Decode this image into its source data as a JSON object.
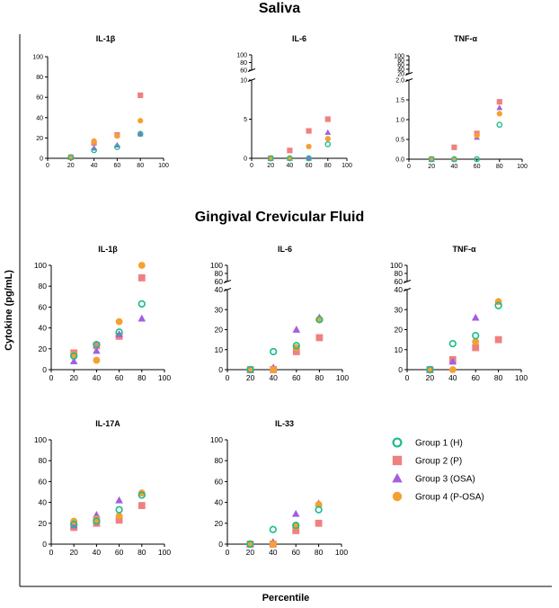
{
  "figure": {
    "sections": [
      "Saliva",
      "Gingival Crevicular Fluid"
    ],
    "ylabel": "Cytokine (pg/mL)",
    "xlabel": "Percentile"
  },
  "legend": [
    {
      "name": "Group 1 (H)",
      "marker": "open-circle",
      "color": "#1ABC8C"
    },
    {
      "name": "Group 2 (P)",
      "marker": "square",
      "color": "#F08080"
    },
    {
      "name": "Group 3 (OSA)",
      "marker": "triangle",
      "color": "#A45EE0"
    },
    {
      "name": "Group 4 (P-OSA)",
      "marker": "filled-circle",
      "color": "#F5A030"
    }
  ],
  "colors": {
    "group1": "#1ABC8C",
    "group2": "#F08080",
    "group3": "#A45EE0",
    "group4": "#F5A030"
  },
  "chart_data": [
    {
      "type": "scatter",
      "section": "Saliva",
      "title": "IL-1β",
      "x": [
        20,
        40,
        60,
        80
      ],
      "xlim": [
        0,
        100
      ],
      "ylim": [
        0,
        100
      ],
      "xticks": [
        "0",
        "20",
        "40",
        "60",
        "80",
        "100"
      ],
      "yticks": [
        "0",
        "20",
        "40",
        "60",
        "80",
        "100"
      ],
      "series": [
        {
          "name": "Group 1 (H)",
          "values": [
            1,
            8,
            11,
            24
          ]
        },
        {
          "name": "Group 2 (P)",
          "values": [
            1,
            15,
            23,
            62
          ]
        },
        {
          "name": "Group 3 (OSA)",
          "values": [
            1,
            10,
            13,
            24
          ]
        },
        {
          "name": "Group 4 (P-OSA)",
          "values": [
            1,
            17,
            22,
            37
          ]
        }
      ]
    },
    {
      "type": "scatter",
      "section": "Saliva",
      "title": "IL-6",
      "x": [
        20,
        40,
        60,
        80
      ],
      "xlim": [
        0,
        100
      ],
      "ylim": [
        0,
        10
      ],
      "ylim_upper": [
        60,
        100
      ],
      "xticks": [
        "0",
        "20",
        "40",
        "60",
        "80",
        "100"
      ],
      "yticks_lower": [
        "0",
        "5",
        "10"
      ],
      "yticks_upper": [
        "60",
        "80",
        "100"
      ],
      "series": [
        {
          "name": "Group 1 (H)",
          "values": [
            0,
            0,
            0,
            1.8
          ]
        },
        {
          "name": "Group 2 (P)",
          "values": [
            0,
            1.0,
            3.5,
            5.0
          ]
        },
        {
          "name": "Group 3 (OSA)",
          "values": [
            0,
            0,
            0,
            3.3
          ]
        },
        {
          "name": "Group 4 (P-OSA)",
          "values": [
            0,
            0,
            1.5,
            2.5
          ]
        }
      ]
    },
    {
      "type": "scatter",
      "section": "Saliva",
      "title": "TNF-α",
      "x": [
        20,
        40,
        60,
        80
      ],
      "xlim": [
        0,
        100
      ],
      "ylim": [
        0,
        2.0
      ],
      "ylim_upper": [
        20,
        100
      ],
      "xticks": [
        "0",
        "20",
        "40",
        "60",
        "80",
        "100"
      ],
      "yticks_lower": [
        "0.0",
        "0.5",
        "1.0",
        "1.5",
        "2.0"
      ],
      "yticks_upper": [
        "20",
        "40",
        "60",
        "80",
        "100"
      ],
      "series": [
        {
          "name": "Group 1 (H)",
          "values": [
            0,
            0,
            0,
            0.87
          ]
        },
        {
          "name": "Group 2 (P)",
          "values": [
            0,
            0.3,
            0.65,
            1.45
          ]
        },
        {
          "name": "Group 3 (OSA)",
          "values": [
            0,
            0,
            0.55,
            1.3
          ]
        },
        {
          "name": "Group 4 (P-OSA)",
          "values": [
            0,
            0,
            0.6,
            1.15
          ]
        }
      ]
    },
    {
      "type": "scatter",
      "section": "Gingival Crevicular Fluid",
      "title": "IL-1β",
      "x": [
        20,
        40,
        60,
        80
      ],
      "xlim": [
        0,
        100
      ],
      "ylim": [
        0,
        100
      ],
      "xticks": [
        "0",
        "20",
        "40",
        "60",
        "80",
        "100"
      ],
      "yticks": [
        "0",
        "20",
        "40",
        "60",
        "80",
        "100"
      ],
      "series": [
        {
          "name": "Group 1 (H)",
          "values": [
            13,
            24,
            36,
            63
          ]
        },
        {
          "name": "Group 2 (P)",
          "values": [
            16,
            23,
            32,
            88
          ]
        },
        {
          "name": "Group 3 (OSA)",
          "values": [
            8,
            18,
            34,
            49
          ]
        },
        {
          "name": "Group 4 (P-OSA)",
          "values": [
            14,
            9,
            46,
            100
          ]
        }
      ]
    },
    {
      "type": "scatter",
      "section": "Gingival Crevicular Fluid",
      "title": "IL-6",
      "x": [
        20,
        40,
        60,
        80
      ],
      "xlim": [
        0,
        100
      ],
      "ylim": [
        0,
        40
      ],
      "ylim_upper": [
        60,
        100
      ],
      "xticks": [
        "0",
        "20",
        "40",
        "60",
        "80",
        "100"
      ],
      "yticks_lower": [
        "0",
        "10",
        "20",
        "30",
        "40"
      ],
      "yticks_upper": [
        "60",
        "80",
        "100"
      ],
      "series": [
        {
          "name": "Group 1 (H)",
          "values": [
            0,
            9,
            12,
            25
          ]
        },
        {
          "name": "Group 2 (P)",
          "values": [
            0,
            0,
            9,
            16
          ]
        },
        {
          "name": "Group 3 (OSA)",
          "values": [
            0,
            1,
            20,
            26
          ]
        },
        {
          "name": "Group 4 (P-OSA)",
          "values": [
            0,
            0,
            11,
            25
          ]
        }
      ]
    },
    {
      "type": "scatter",
      "section": "Gingival Crevicular Fluid",
      "title": "TNF-α",
      "x": [
        20,
        40,
        60,
        80
      ],
      "xlim": [
        0,
        100
      ],
      "ylim": [
        0,
        40
      ],
      "ylim_upper": [
        60,
        100
      ],
      "xticks": [
        "0",
        "20",
        "40",
        "60",
        "80",
        "100"
      ],
      "yticks_lower": [
        "0",
        "10",
        "20",
        "30",
        "40"
      ],
      "yticks_upper": [
        "60",
        "80",
        "100"
      ],
      "series": [
        {
          "name": "Group 1 (H)",
          "values": [
            0,
            13,
            17,
            32
          ]
        },
        {
          "name": "Group 2 (P)",
          "values": [
            0,
            5,
            11,
            15
          ]
        },
        {
          "name": "Group 3 (OSA)",
          "values": [
            0,
            4,
            26,
            34
          ]
        },
        {
          "name": "Group 4 (P-OSA)",
          "values": [
            0,
            0,
            14,
            34
          ]
        }
      ]
    },
    {
      "type": "scatter",
      "section": "Gingival Crevicular Fluid",
      "title": "IL-17A",
      "x": [
        20,
        40,
        60,
        80
      ],
      "xlim": [
        0,
        100
      ],
      "ylim": [
        0,
        100
      ],
      "xticks": [
        "0",
        "20",
        "40",
        "60",
        "80",
        "100"
      ],
      "yticks": [
        "0",
        "20",
        "40",
        "60",
        "80",
        "100"
      ],
      "series": [
        {
          "name": "Group 1 (H)",
          "values": [
            19,
            22,
            33,
            47
          ]
        },
        {
          "name": "Group 2 (P)",
          "values": [
            16,
            20,
            23,
            37
          ]
        },
        {
          "name": "Group 3 (OSA)",
          "values": [
            18,
            28,
            42,
            49
          ]
        },
        {
          "name": "Group 4 (P-OSA)",
          "values": [
            22,
            24,
            27,
            49
          ]
        }
      ]
    },
    {
      "type": "scatter",
      "section": "Gingival Crevicular Fluid",
      "title": "IL-33",
      "x": [
        20,
        40,
        60,
        80
      ],
      "xlim": [
        0,
        100
      ],
      "ylim": [
        0,
        100
      ],
      "xticks": [
        "0",
        "20",
        "40",
        "60",
        "80",
        "100"
      ],
      "yticks": [
        "0",
        "20",
        "40",
        "60",
        "80",
        "100"
      ],
      "series": [
        {
          "name": "Group 1 (H)",
          "values": [
            0,
            14,
            18,
            33
          ]
        },
        {
          "name": "Group 2 (P)",
          "values": [
            0,
            0,
            13,
            20
          ]
        },
        {
          "name": "Group 3 (OSA)",
          "values": [
            0,
            2,
            29,
            39
          ]
        },
        {
          "name": "Group 4 (P-OSA)",
          "values": [
            0,
            0,
            17,
            38
          ]
        }
      ]
    }
  ]
}
